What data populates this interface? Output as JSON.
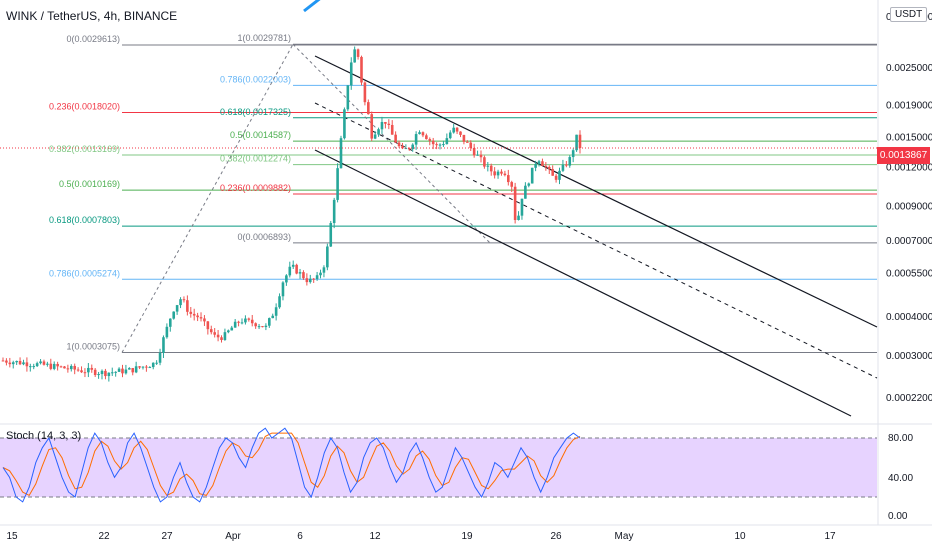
{
  "header": {
    "title": "WINK / TetherUS, 4h, BINANCE",
    "currency": "USDT"
  },
  "current_price": "0.0013867",
  "chart_data": [
    {
      "type": "candlestick",
      "symbol": "WINK / TetherUS",
      "interval": "4h",
      "exchange": "BINANCE",
      "scale": "log",
      "y_ticks": [
        "0.0025000",
        "0.0019000",
        "0.0015000",
        "0.0012000",
        "0.0009000",
        "0.0007000",
        "0.0005500",
        "0.0004000",
        "0.0003000",
        "0.0002200"
      ],
      "x_ticks": [
        "15",
        "22",
        "27",
        "Apr",
        "6",
        "12",
        "19",
        "26",
        "May",
        "10",
        "17"
      ],
      "close_path": [
        [
          0,
          0.00029
        ],
        [
          5,
          0.00028
        ],
        [
          9,
          0.00027
        ],
        [
          12,
          0.000265
        ],
        [
          15,
          0.00027
        ],
        [
          18,
          0.000285
        ],
        [
          20,
          0.00042
        ],
        [
          21,
          0.00046
        ],
        [
          22,
          0.00041
        ],
        [
          23,
          0.0004
        ],
        [
          24,
          0.00037
        ],
        [
          25,
          0.000345
        ],
        [
          26,
          0.000345
        ],
        [
          27,
          0.00037
        ],
        [
          28,
          0.00039
        ],
        [
          30,
          0.00038
        ],
        [
          31,
          0.00037
        ],
        [
          32,
          0.00042
        ],
        [
          33,
          0.00052
        ],
        [
          34,
          0.00058
        ],
        [
          35,
          0.00055
        ],
        [
          36,
          0.00052
        ],
        [
          37,
          0.00053
        ],
        [
          38,
          0.0006
        ],
        [
          38.7,
          0.00082
        ],
        [
          39.3,
          0.0011
        ],
        [
          40,
          0.0016
        ],
        [
          40.7,
          0.0023
        ],
        [
          41.3,
          0.0029
        ],
        [
          41.9,
          0.0027
        ],
        [
          42.5,
          0.002
        ],
        [
          43,
          0.0018
        ],
        [
          43.5,
          0.0015
        ],
        [
          44,
          0.0016
        ],
        [
          45,
          0.0017
        ],
        [
          46,
          0.0015
        ],
        [
          47,
          0.00135
        ],
        [
          48,
          0.0014
        ],
        [
          49,
          0.0016
        ],
        [
          50,
          0.0015
        ],
        [
          51,
          0.0014
        ],
        [
          52,
          0.00145
        ],
        [
          53,
          0.0016
        ],
        [
          54,
          0.0015
        ],
        [
          55,
          0.0014
        ],
        [
          56,
          0.0013
        ],
        [
          57,
          0.0012
        ],
        [
          58,
          0.00115
        ],
        [
          59,
          0.00118
        ],
        [
          60,
          0.00105
        ],
        [
          60.5,
          0.00075
        ],
        [
          61,
          0.00095
        ],
        [
          62,
          0.0011
        ],
        [
          63,
          0.0013
        ],
        [
          64,
          0.0012
        ],
        [
          65,
          0.0011
        ],
        [
          66,
          0.0012
        ],
        [
          67,
          0.0013
        ],
        [
          67.5,
          0.00152
        ],
        [
          68,
          0.0014
        ]
      ],
      "fibonacci_retracements": [
        {
          "levels": [
            {
              "label": "0(0.0029613)",
              "value": 0.0029613,
              "color": "#787b86"
            },
            {
              "label": "0.236(0.0018020)",
              "value": 0.001802,
              "color": "#f23645"
            },
            {
              "label": "0.382(0.0013169)",
              "value": 0.0013169,
              "color": "#81c784"
            },
            {
              "label": "0.5(0.0010169)",
              "value": 0.0010169,
              "color": "#4caf50"
            },
            {
              "label": "0.618(0.0007803)",
              "value": 0.0007803,
              "color": "#089981"
            },
            {
              "label": "0.786(0.0005274)",
              "value": 0.0005274,
              "color": "#64b5f6"
            },
            {
              "label": "1(0.0003075)",
              "value": 0.0003075,
              "color": "#787b86"
            }
          ]
        },
        {
          "levels": [
            {
              "label": "1(0.0029781)",
              "value": 0.0029781,
              "color": "#787b86"
            },
            {
              "label": "0.786(0.0022003)",
              "value": 0.0022003,
              "color": "#64b5f6"
            },
            {
              "label": "0.618(0.0017325)",
              "value": 0.0017325,
              "color": "#089981"
            },
            {
              "label": "0.5(0.0014587)",
              "value": 0.0014587,
              "color": "#4caf50"
            },
            {
              "label": "0.382(0.0012274)",
              "value": 0.0012274,
              "color": "#81c784"
            },
            {
              "label": "0.236(0.0009882)",
              "value": 0.0009882,
              "color": "#f23645"
            },
            {
              "label": "0(0.0006893)",
              "value": 0.0006893,
              "color": "#787b86"
            }
          ]
        }
      ],
      "colors": {
        "up": "#26a69a",
        "down": "#ef5350",
        "last_price": "#f23645"
      }
    },
    {
      "type": "line",
      "name": "Stoch (14, 3, 3)",
      "y_ticks": [
        "80.00",
        "40.00",
        "0.00"
      ],
      "bands": [
        80,
        20
      ],
      "k": [
        50,
        40,
        20,
        15,
        30,
        55,
        70,
        80,
        60,
        40,
        25,
        20,
        45,
        70,
        85,
        75,
        55,
        40,
        50,
        75,
        85,
        70,
        50,
        30,
        15,
        20,
        40,
        55,
        35,
        20,
        15,
        30,
        50,
        70,
        80,
        75,
        60,
        50,
        70,
        85,
        90,
        80,
        85,
        90,
        80,
        55,
        30,
        20,
        40,
        65,
        80,
        70,
        45,
        25,
        35,
        60,
        75,
        80,
        70,
        50,
        35,
        45,
        65,
        75,
        60,
        40,
        25,
        30,
        50,
        70,
        60,
        45,
        30,
        20,
        35,
        55,
        50,
        40,
        55,
        70,
        60,
        40,
        25,
        40,
        60,
        70,
        80,
        85,
        80
      ],
      "colors": {
        "k": "#2962ff",
        "d": "#ff6d00",
        "band_fill": "#e1c8ff"
      }
    }
  ]
}
